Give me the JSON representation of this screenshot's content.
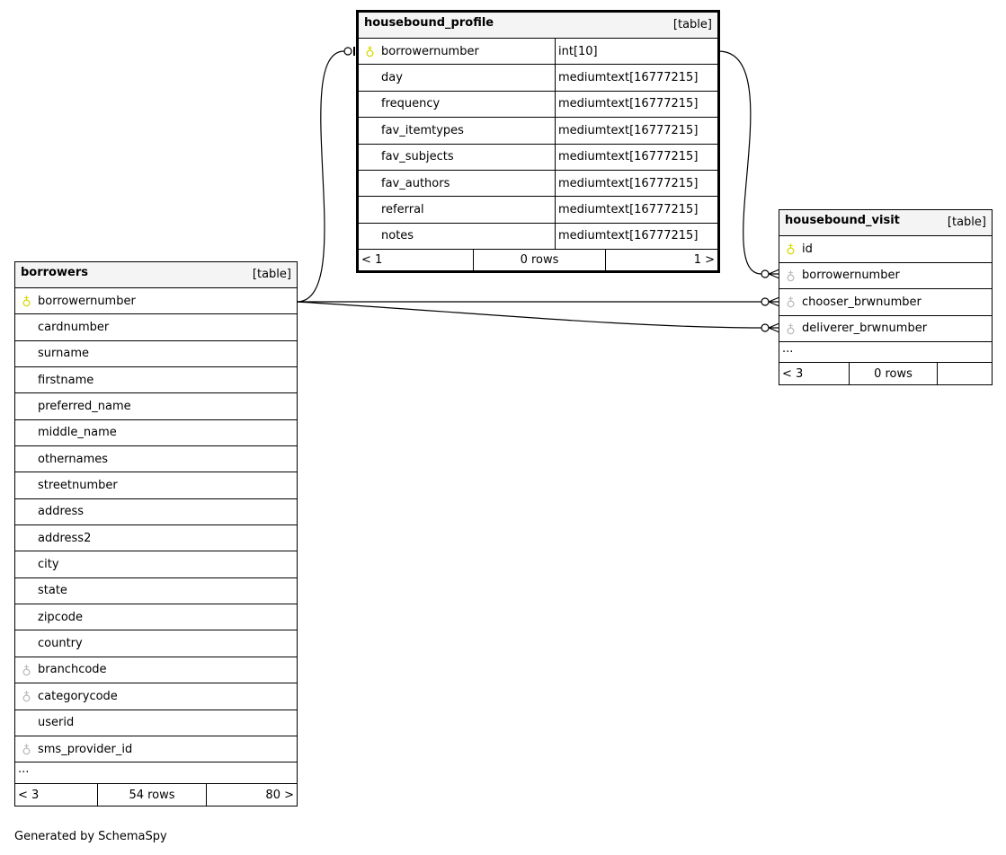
{
  "tables": {
    "housebound_profile": {
      "name": "housebound_profile",
      "kind": "[table]",
      "columns": [
        {
          "name": "borrowernumber",
          "type": "int[10]",
          "key": "primary-key"
        },
        {
          "name": "day",
          "type": "mediumtext[16777215]",
          "key": ""
        },
        {
          "name": "frequency",
          "type": "mediumtext[16777215]",
          "key": ""
        },
        {
          "name": "fav_itemtypes",
          "type": "mediumtext[16777215]",
          "key": ""
        },
        {
          "name": "fav_subjects",
          "type": "mediumtext[16777215]",
          "key": ""
        },
        {
          "name": "fav_authors",
          "type": "mediumtext[16777215]",
          "key": ""
        },
        {
          "name": "referral",
          "type": "mediumtext[16777215]",
          "key": ""
        },
        {
          "name": "notes",
          "type": "mediumtext[16777215]",
          "key": ""
        }
      ],
      "more": "",
      "footer": {
        "parents": "< 1",
        "rows": "0 rows",
        "children": "1 >"
      }
    },
    "housebound_visit": {
      "name": "housebound_visit",
      "kind": "[table]",
      "columns": [
        {
          "name": "id",
          "key": "primary-key"
        },
        {
          "name": "borrowernumber",
          "key": "foreign-key"
        },
        {
          "name": "chooser_brwnumber",
          "key": "foreign-key"
        },
        {
          "name": "deliverer_brwnumber",
          "key": "foreign-key"
        }
      ],
      "more": "...",
      "footer": {
        "parents": "< 3",
        "rows": "0 rows",
        "children": ""
      }
    },
    "borrowers": {
      "name": "borrowers",
      "kind": "[table]",
      "columns": [
        {
          "name": "borrowernumber",
          "key": "primary-key"
        },
        {
          "name": "cardnumber",
          "key": ""
        },
        {
          "name": "surname",
          "key": ""
        },
        {
          "name": "firstname",
          "key": ""
        },
        {
          "name": "preferred_name",
          "key": ""
        },
        {
          "name": "middle_name",
          "key": ""
        },
        {
          "name": "othernames",
          "key": ""
        },
        {
          "name": "streetnumber",
          "key": ""
        },
        {
          "name": "address",
          "key": ""
        },
        {
          "name": "address2",
          "key": ""
        },
        {
          "name": "city",
          "key": ""
        },
        {
          "name": "state",
          "key": ""
        },
        {
          "name": "zipcode",
          "key": ""
        },
        {
          "name": "country",
          "key": ""
        },
        {
          "name": "branchcode",
          "key": "foreign-key"
        },
        {
          "name": "categorycode",
          "key": "foreign-key"
        },
        {
          "name": "userid",
          "key": ""
        },
        {
          "name": "sms_provider_id",
          "key": "foreign-key"
        }
      ],
      "more": "...",
      "footer": {
        "parents": "< 3",
        "rows": "54 rows",
        "children": "80 >"
      }
    }
  },
  "colors": {
    "primary_key": "#d8d800",
    "foreign_key": "#bbbbbb",
    "header_bg": "#f4f4f4"
  },
  "generated_by": "Generated by SchemaSpy"
}
